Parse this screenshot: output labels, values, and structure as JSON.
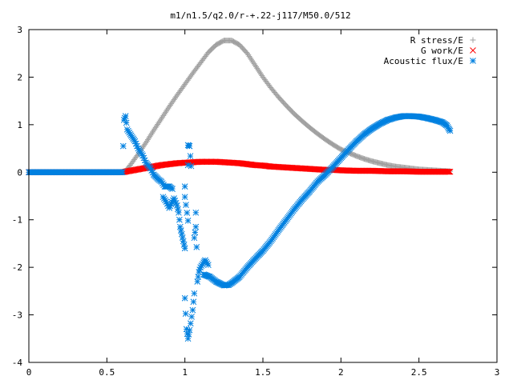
{
  "chart_data": {
    "type": "scatter",
    "title": "m1/n1.5/q2.0/r-+.22-j117/M50.0/512",
    "xlabel": "",
    "ylabel": "",
    "xlim": [
      0,
      3
    ],
    "ylim": [
      -4,
      3
    ],
    "grid": false,
    "legend_position": "top-right",
    "x_ticks": [
      "0",
      "0.5",
      "1",
      "1.5",
      "2",
      "2.5",
      "3"
    ],
    "y_ticks": [
      "3",
      "2",
      "1",
      "0",
      "-1",
      "-2",
      "-3",
      "-4"
    ],
    "series": [
      {
        "name": "R stress/E",
        "marker": "plus",
        "color": "#a0a0a0",
        "points": [
          [
            0.0,
            0
          ],
          [
            0.1,
            0
          ],
          [
            0.2,
            0
          ],
          [
            0.3,
            0
          ],
          [
            0.4,
            0
          ],
          [
            0.5,
            0
          ],
          [
            0.6,
            0
          ],
          [
            0.62,
            0.03
          ],
          [
            0.65,
            0.15
          ],
          [
            0.7,
            0.38
          ],
          [
            0.75,
            0.62
          ],
          [
            0.8,
            0.88
          ],
          [
            0.85,
            1.13
          ],
          [
            0.9,
            1.38
          ],
          [
            0.95,
            1.62
          ],
          [
            1.0,
            1.85
          ],
          [
            1.05,
            2.08
          ],
          [
            1.1,
            2.3
          ],
          [
            1.15,
            2.52
          ],
          [
            1.2,
            2.68
          ],
          [
            1.25,
            2.77
          ],
          [
            1.3,
            2.77
          ],
          [
            1.35,
            2.68
          ],
          [
            1.4,
            2.5
          ],
          [
            1.45,
            2.25
          ],
          [
            1.5,
            2.0
          ],
          [
            1.55,
            1.78
          ],
          [
            1.6,
            1.58
          ],
          [
            1.65,
            1.4
          ],
          [
            1.7,
            1.23
          ],
          [
            1.75,
            1.08
          ],
          [
            1.8,
            0.94
          ],
          [
            1.85,
            0.81
          ],
          [
            1.9,
            0.69
          ],
          [
            1.95,
            0.58
          ],
          [
            2.0,
            0.48
          ],
          [
            2.05,
            0.41
          ],
          [
            2.1,
            0.34
          ],
          [
            2.15,
            0.28
          ],
          [
            2.2,
            0.23
          ],
          [
            2.25,
            0.19
          ],
          [
            2.3,
            0.15
          ],
          [
            2.35,
            0.12
          ],
          [
            2.4,
            0.1
          ],
          [
            2.45,
            0.08
          ],
          [
            2.5,
            0.06
          ],
          [
            2.55,
            0.05
          ],
          [
            2.6,
            0.04
          ],
          [
            2.65,
            0.03
          ],
          [
            2.7,
            0.02
          ]
        ]
      },
      {
        "name": "G work/E",
        "marker": "cross",
        "color": "#ff0000",
        "points": [
          [
            0.0,
            0
          ],
          [
            0.1,
            0
          ],
          [
            0.2,
            0
          ],
          [
            0.3,
            0
          ],
          [
            0.4,
            0
          ],
          [
            0.5,
            0
          ],
          [
            0.6,
            0
          ],
          [
            0.65,
            0.03
          ],
          [
            0.7,
            0.06
          ],
          [
            0.75,
            0.09
          ],
          [
            0.8,
            0.12
          ],
          [
            0.85,
            0.15
          ],
          [
            0.9,
            0.17
          ],
          [
            0.95,
            0.19
          ],
          [
            1.0,
            0.2
          ],
          [
            1.05,
            0.21
          ],
          [
            1.1,
            0.22
          ],
          [
            1.15,
            0.22
          ],
          [
            1.2,
            0.22
          ],
          [
            1.25,
            0.21
          ],
          [
            1.3,
            0.2
          ],
          [
            1.35,
            0.19
          ],
          [
            1.4,
            0.17
          ],
          [
            1.45,
            0.15
          ],
          [
            1.5,
            0.14
          ],
          [
            1.55,
            0.12
          ],
          [
            1.6,
            0.11
          ],
          [
            1.65,
            0.1
          ],
          [
            1.7,
            0.09
          ],
          [
            1.75,
            0.08
          ],
          [
            1.8,
            0.07
          ],
          [
            1.85,
            0.06
          ],
          [
            1.9,
            0.05
          ],
          [
            1.95,
            0.05
          ],
          [
            2.0,
            0.04
          ],
          [
            2.1,
            0.03
          ],
          [
            2.2,
            0.03
          ],
          [
            2.3,
            0.02
          ],
          [
            2.4,
            0.02
          ],
          [
            2.5,
            0.01
          ],
          [
            2.6,
            0.01
          ],
          [
            2.7,
            0.01
          ]
        ]
      },
      {
        "name": "Acoustic flux/E",
        "marker": "star",
        "color": "#0080e0",
        "points": [
          [
            0.0,
            0
          ],
          [
            0.1,
            0
          ],
          [
            0.2,
            0
          ],
          [
            0.3,
            0
          ],
          [
            0.4,
            0
          ],
          [
            0.5,
            0
          ],
          [
            0.6,
            0
          ],
          [
            0.61,
            1.1
          ],
          [
            0.62,
            1.18
          ],
          [
            0.63,
            0.9
          ],
          [
            0.65,
            0.8
          ],
          [
            0.68,
            0.65
          ],
          [
            0.7,
            0.5
          ],
          [
            0.73,
            0.35
          ],
          [
            0.75,
            0.2
          ],
          [
            0.78,
            0.08
          ],
          [
            0.8,
            -0.05
          ],
          [
            0.83,
            -0.15
          ],
          [
            0.85,
            -0.2
          ],
          [
            0.87,
            -0.3
          ],
          [
            0.9,
            -0.3
          ],
          [
            0.92,
            -0.35
          ],
          [
            0.86,
            -0.52
          ],
          [
            0.88,
            -0.62
          ],
          [
            0.9,
            -0.75
          ],
          [
            0.93,
            -0.55
          ],
          [
            0.95,
            -0.7
          ],
          [
            0.96,
            -0.85
          ],
          [
            0.97,
            -1.15
          ],
          [
            0.98,
            -1.3
          ],
          [
            0.99,
            -1.45
          ],
          [
            1.0,
            -1.6
          ],
          [
            1.0,
            -0.3
          ],
          [
            1.0,
            -0.52
          ],
          [
            1.02,
            -1.02
          ],
          [
            1.02,
            0.15
          ],
          [
            1.02,
            0.57
          ],
          [
            1.03,
            0.55
          ],
          [
            1.04,
            0.13
          ],
          [
            1.0,
            -2.65
          ],
          [
            1.01,
            -3.3
          ],
          [
            1.02,
            -3.5
          ],
          [
            1.03,
            -3.32
          ],
          [
            1.05,
            -2.9
          ],
          [
            1.06,
            -2.55
          ],
          [
            1.06,
            -1.38
          ],
          [
            1.07,
            -1.15
          ],
          [
            1.07,
            -0.85
          ],
          [
            1.08,
            -2.3
          ],
          [
            1.09,
            -2.1
          ],
          [
            1.1,
            -2.0
          ],
          [
            1.12,
            -1.9
          ],
          [
            1.13,
            -1.85
          ],
          [
            1.15,
            -1.95
          ],
          [
            1.12,
            -2.15
          ],
          [
            1.16,
            -2.2
          ],
          [
            1.18,
            -2.25
          ],
          [
            1.2,
            -2.3
          ],
          [
            1.23,
            -2.35
          ],
          [
            1.25,
            -2.38
          ],
          [
            1.28,
            -2.37
          ],
          [
            1.3,
            -2.33
          ],
          [
            1.35,
            -2.2
          ],
          [
            1.4,
            -2.0
          ],
          [
            1.45,
            -1.82
          ],
          [
            1.5,
            -1.65
          ],
          [
            1.55,
            -1.45
          ],
          [
            1.6,
            -1.22
          ],
          [
            1.65,
            -1.0
          ],
          [
            1.7,
            -0.78
          ],
          [
            1.75,
            -0.58
          ],
          [
            1.8,
            -0.4
          ],
          [
            1.85,
            -0.2
          ],
          [
            1.9,
            -0.05
          ],
          [
            1.95,
            0.12
          ],
          [
            2.0,
            0.3
          ],
          [
            2.05,
            0.48
          ],
          [
            2.1,
            0.65
          ],
          [
            2.15,
            0.8
          ],
          [
            2.2,
            0.92
          ],
          [
            2.25,
            1.02
          ],
          [
            2.3,
            1.1
          ],
          [
            2.35,
            1.15
          ],
          [
            2.4,
            1.18
          ],
          [
            2.45,
            1.18
          ],
          [
            2.5,
            1.17
          ],
          [
            2.55,
            1.14
          ],
          [
            2.6,
            1.1
          ],
          [
            2.65,
            1.05
          ],
          [
            2.68,
            0.98
          ],
          [
            2.69,
            0.92
          ],
          [
            2.7,
            0.87
          ]
        ]
      }
    ]
  }
}
